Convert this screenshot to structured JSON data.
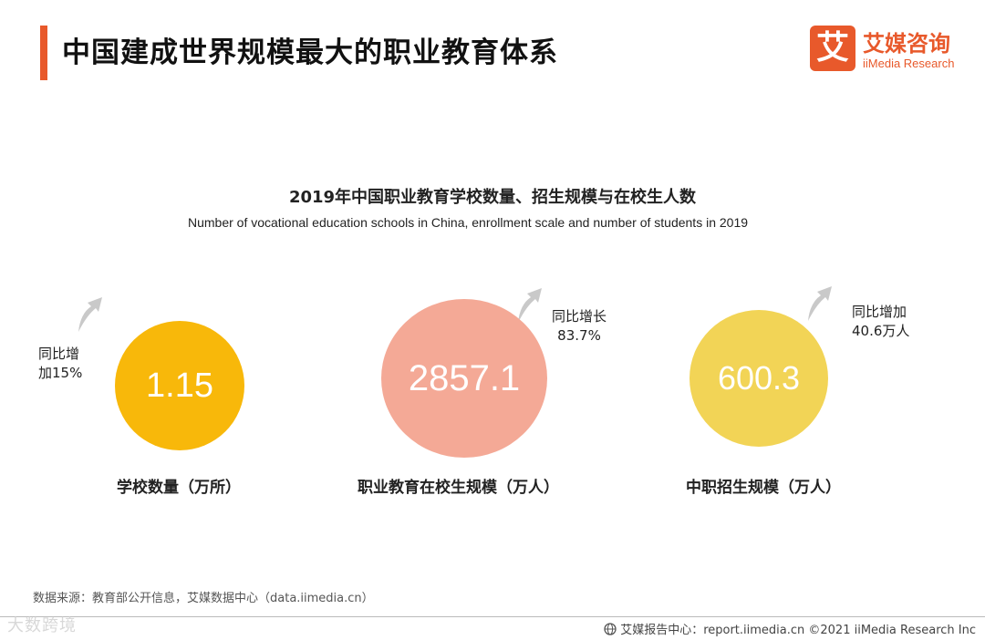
{
  "header": {
    "title": "中国建成世界规模最大的职业教育体系",
    "logo_mark": "艾",
    "logo_cn": "艾媒咨询",
    "logo_en": "iiMedia Research"
  },
  "chart": {
    "title": "2019年中国职业教育学校数量、招生规模与在校生人数",
    "subtitle": "Number of vocational education schools in China, enrollment scale and number of students in 2019"
  },
  "metrics": [
    {
      "value": "1.15",
      "label": "学校数量（万所）",
      "growth_line1": "同比增",
      "growth_line2": "加15%"
    },
    {
      "value": "2857.1",
      "label": "职业教育在校生规模（万人）",
      "growth_line1": "同比增长",
      "growth_line2": "83.7%"
    },
    {
      "value": "600.3",
      "label": "中职招生规模（万人）",
      "growth_line1": "同比增加",
      "growth_line2": "40.6万人"
    }
  ],
  "footer": {
    "source": "数据来源：教育部公开信息，艾媒数据中心（data.iimedia.cn）",
    "report": "艾媒报告中心：report.iimedia.cn  ©2021  iiMedia Research  Inc",
    "watermark": "大数跨境"
  },
  "colors": {
    "accent": "#e8592b",
    "circle_1": "#f8b80a",
    "circle_2": "#f4a996",
    "circle_3": "#f2d456",
    "arrow": "#c9c9c9"
  },
  "icons": {
    "arrow": "up-right-arrow-icon",
    "footer": "globe-icon"
  }
}
